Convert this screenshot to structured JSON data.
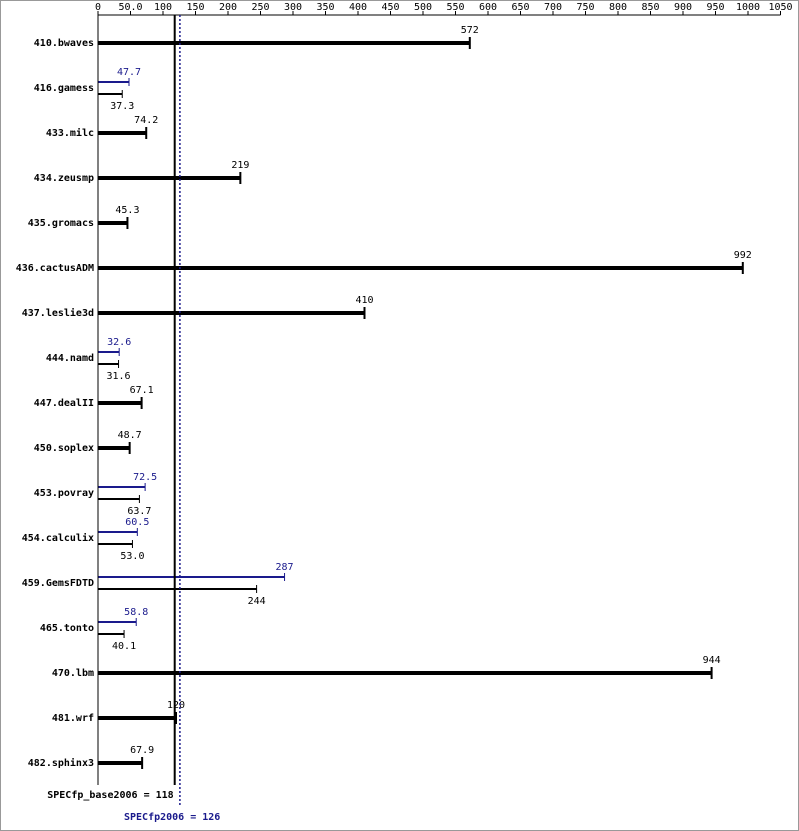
{
  "chart_data": {
    "type": "hbar",
    "categories": [
      "410.bwaves",
      "416.gamess",
      "433.milc",
      "434.zeusmp",
      "435.gromacs",
      "436.cactusADM",
      "437.leslie3d",
      "444.namd",
      "447.dealII",
      "450.soplex",
      "453.povray",
      "454.calculix",
      "459.GemsFDTD",
      "465.tonto",
      "470.lbm",
      "481.wrf",
      "482.sphinx3"
    ],
    "series": [
      {
        "color": "#000000",
        "values": [
          572,
          37.3,
          74.2,
          219,
          45.3,
          992,
          410,
          31.6,
          67.1,
          48.7,
          63.7,
          53.0,
          244,
          40.1,
          944,
          120,
          67.9
        ],
        "value_labels": [
          "572",
          "37.3",
          "74.2",
          "219",
          "45.3",
          "992",
          "410",
          "31.6",
          "67.1",
          "48.7",
          "63.7",
          "53.0",
          "244",
          "40.1",
          "944",
          "120",
          "67.9"
        ]
      },
      {
        "color": "#1a1a8c",
        "values": [
          null,
          47.7,
          null,
          null,
          null,
          null,
          null,
          32.6,
          null,
          null,
          72.5,
          60.5,
          287,
          58.8,
          null,
          null,
          null
        ]
      }
    ],
    "reference_lines": [
      {
        "label": "SPECfp_base2006 = 118",
        "value": 118,
        "color": "#000000",
        "style": "solid"
      },
      {
        "label": "SPECfp2006 = 126",
        "value": 126,
        "color": "#1a1a8c",
        "style": "dotted"
      }
    ],
    "xlim": [
      0,
      1050
    ],
    "xticks": [
      0,
      {
        "value": 50,
        "label": "50.0"
      },
      100,
      150,
      200,
      250,
      300,
      350,
      400,
      450,
      500,
      550,
      600,
      650,
      700,
      750,
      800,
      850,
      900,
      950,
      1000,
      1050
    ]
  }
}
